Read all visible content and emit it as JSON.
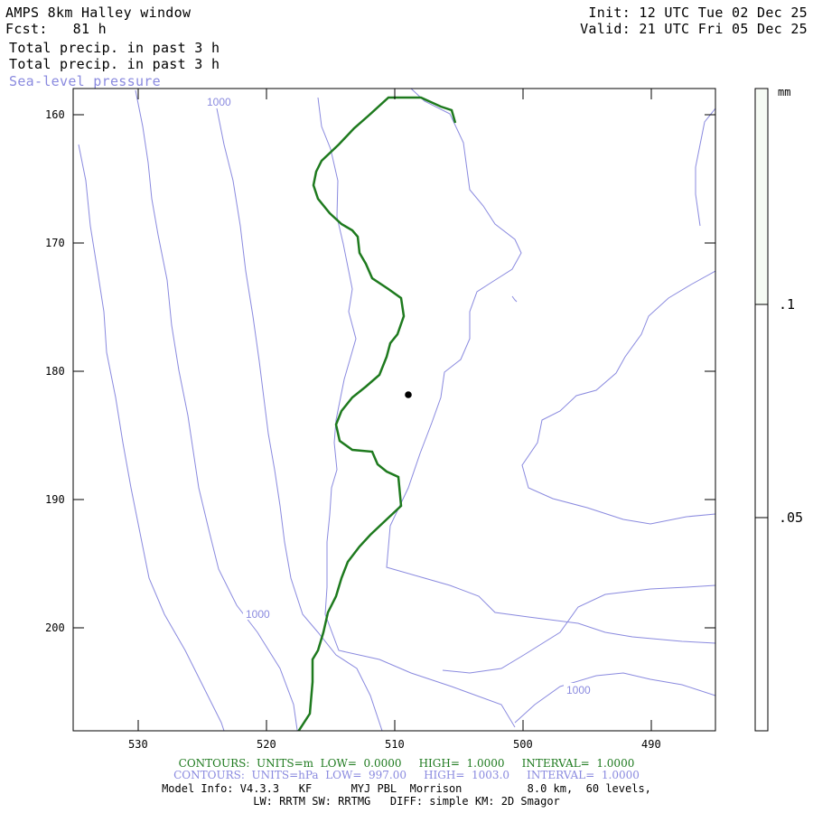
{
  "header": {
    "title": "AMPS 8km Halley window",
    "fcst": "Fcst:   81 h",
    "init": "Init: 12 UTC Tue 02 Dec 25",
    "valid": "Valid: 21 UTC Fri 05 Dec 25",
    "field1": "Total precip. in past 3 h",
    "field2": "Total precip. in past 3 h",
    "field3": "Sea-level pressure"
  },
  "axes": {
    "y_ticks": [
      "160",
      "170",
      "180",
      "190",
      "200"
    ],
    "x_ticks": [
      "530",
      "520",
      "510",
      "500",
      "490"
    ]
  },
  "colorbar": {
    "unit": "mm",
    "labels": [
      ".1",
      ".05"
    ]
  },
  "contour_labels": [
    "1000",
    "1000",
    "1000"
  ],
  "footer": {
    "green": "CONTOURS:  UNITS=m  LOW=  0.0000     HIGH=  1.0000     INTERVAL=  1.0000",
    "blue": "CONTOURS:  UNITS=hPa  LOW=  997.00     HIGH=  1003.0     INTERVAL=  1.0000",
    "model1": "Model Info: V4.3.3   KF      MYJ PBL  Morrison          8.0 km,  60 levels,",
    "model2": "LW: RRTM SW: RRTMG   DIFF: simple KM: 2D Smagor"
  },
  "colors": {
    "pressure": "#8a8adf",
    "terrain": "#1e7a1e",
    "frame": "#000000"
  }
}
